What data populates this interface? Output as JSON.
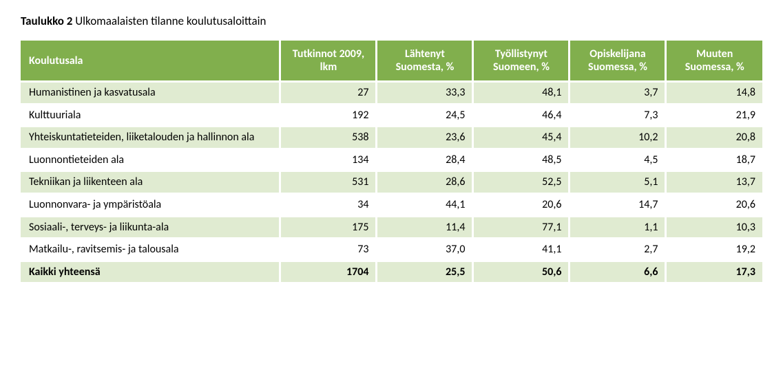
{
  "title_bold": "Taulukko 2",
  "title_rest": "Ulkomaalaisten tilanne koulutusaloittain",
  "colors": {
    "header_bg": "#81af4d",
    "stripe_a": "#e0ebd1",
    "stripe_b": "#ffffff",
    "total_bg": "#e0ebd1"
  },
  "columns": [
    "Koulutusala",
    "Tutkinnot 2009, lkm",
    "Lähtenyt Suomesta, %",
    "Työllistynyt Suomeen, %",
    "Opiskelijana Suomessa, %",
    "Muuten Suomessa, %"
  ],
  "rows": [
    {
      "c0": "Humanistinen ja kasvatusala",
      "c1": "27",
      "c2": "33,3",
      "c3": "48,1",
      "c4": "3,7",
      "c5": "14,8"
    },
    {
      "c0": "Kulttuuriala",
      "c1": "192",
      "c2": "24,5",
      "c3": "46,4",
      "c4": "7,3",
      "c5": "21,9"
    },
    {
      "c0": "Yhteiskuntatieteiden, liiketalouden ja hallinnon ala",
      "c1": "538",
      "c2": "23,6",
      "c3": "45,4",
      "c4": "10,2",
      "c5": "20,8"
    },
    {
      "c0": "Luonnontieteiden ala",
      "c1": "134",
      "c2": "28,4",
      "c3": "48,5",
      "c4": "4,5",
      "c5": "18,7"
    },
    {
      "c0": "Tekniikan ja liikenteen ala",
      "c1": "531",
      "c2": "28,6",
      "c3": "52,5",
      "c4": "5,1",
      "c5": "13,7"
    },
    {
      "c0": "Luonnonvara- ja ympäristöala",
      "c1": "34",
      "c2": "44,1",
      "c3": "20,6",
      "c4": "14,7",
      "c5": "20,6"
    },
    {
      "c0": "Sosiaali-, terveys- ja liikunta-ala",
      "c1": "175",
      "c2": "11,4",
      "c3": "77,1",
      "c4": "1,1",
      "c5": "10,3"
    },
    {
      "c0": "Matkailu-, ravitsemis- ja talousala",
      "c1": "73",
      "c2": "37,0",
      "c3": "41,1",
      "c4": "2,7",
      "c5": "19,2"
    }
  ],
  "total": {
    "c0": "Kaikki yhteensä",
    "c1": "1704",
    "c2": "25,5",
    "c3": "50,6",
    "c4": "6,6",
    "c5": "17,3"
  }
}
